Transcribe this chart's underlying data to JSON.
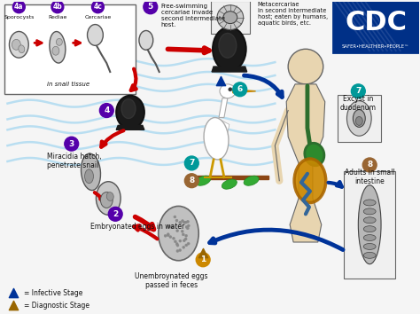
{
  "background_color": "#f5f5f5",
  "fig_width": 4.74,
  "fig_height": 3.54,
  "dpi": 100,
  "labels": {
    "4a": "Sporocysts",
    "4b": "Rediae",
    "4c": "Cercariae",
    "in_snail": "in snail tissue",
    "step5": "Free-swimming\ncercariae invade\nsecond intermediate\nhost.",
    "step6_title": "Metacercariae\nin second intermediate\nhost; eaten by humans,\naquatic birds, etc.",
    "step7_label": "Excyst in\nduodenum",
    "step8_label": "Adults in small\nintestine",
    "step3_label": "Miracidia hatch,\npenetrate snail",
    "step2_label": "Embryonated eggs in water",
    "step1_label": "Unembroynated eggs\npassed in feces",
    "infective": "= Infective Stage",
    "diagnostic": "= Diagnostic Stage",
    "cdc_text": "SAFER•HEALTHIER•PEOPLE™"
  },
  "colors": {
    "red_arrow": "#cc0000",
    "blue_arrow": "#003399",
    "purple_circle": "#5500aa",
    "teal_circle": "#009999",
    "gold_circle": "#cc8800",
    "brown_circle": "#996633",
    "water_blue": "#88ccee",
    "box_outline": "#666666",
    "cdc_blue": "#003087",
    "text_dark": "#111111",
    "bg_light": "#e8f4f8"
  }
}
